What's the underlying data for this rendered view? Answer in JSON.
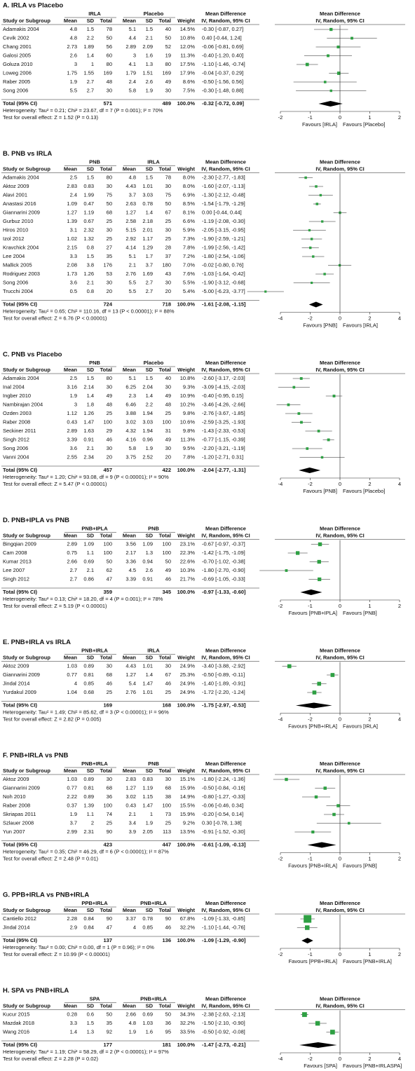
{
  "columns": {
    "study": "Study or Subgroup",
    "mean": "Mean",
    "sd": "SD",
    "total": "Total",
    "weight": "Weight",
    "md": "Mean Difference",
    "method": "IV, Random, 95% CI",
    "total_label": "Total (95% CI)"
  },
  "panels": [
    {
      "type": "forest",
      "title": "A. IRLA vs Placebo",
      "groups": [
        "IRLA",
        "Placebo"
      ],
      "xlim": [
        -2,
        2
      ],
      "xticks": [
        -2,
        -1,
        0,
        1,
        2
      ],
      "favours": [
        "Favours [IRLA]",
        "Favours [Placebo]"
      ],
      "rows": [
        [
          "Adamakis 2004",
          4.8,
          1.5,
          78,
          5.1,
          1.5,
          40,
          "14.5%",
          "-0.30 [-0.87, 0.27]",
          -0.3,
          -0.87,
          0.27
        ],
        [
          "Cevik 2002",
          4.8,
          2.2,
          50,
          4.4,
          2.1,
          50,
          "10.8%",
          "0.40 [-0.44, 1.24]",
          0.4,
          -0.44,
          1.24
        ],
        [
          "Chang 2001",
          2.73,
          1.89,
          56,
          2.89,
          2.09,
          52,
          "12.0%",
          "-0.06 [-0.81, 0.69]",
          -0.06,
          -0.81,
          0.69
        ],
        [
          "Galosi 2005",
          2.6,
          1.4,
          60,
          3,
          1.6,
          19,
          "11.3%",
          "-0.40 [-1.20, 0.40]",
          -0.4,
          -1.2,
          0.4
        ],
        [
          "Goluza 2010",
          3,
          1,
          80,
          4.1,
          1.3,
          80,
          "17.5%",
          "-1.10 [-1.46, -0.74]",
          -1.1,
          -1.46,
          -0.74
        ],
        [
          "Loweg 2006",
          1.75,
          1.55,
          169,
          1.79,
          1.51,
          169,
          "17.9%",
          "-0.04 [-0.37, 0.29]",
          -0.04,
          -0.37,
          0.29
        ],
        [
          "Raber 2005",
          1.9,
          2.7,
          48,
          2.4,
          2.6,
          49,
          "8.6%",
          "-0.50 [-1.56, 0.56]",
          -0.5,
          -1.56,
          0.56
        ],
        [
          "Song 2006",
          5.5,
          2.7,
          30,
          5.8,
          1.9,
          30,
          "7.5%",
          "-0.30 [-1.48, 0.88]",
          -0.3,
          -1.48,
          0.88
        ]
      ],
      "total": {
        "n1": 571,
        "n2": 489,
        "weight": "100.0%",
        "ci": "-0.32 [-0.72, 0.09]",
        "md": -0.32,
        "lo": -0.72,
        "hi": 0.09
      },
      "heterogeneity": "Heterogeneity: Tau² = 0.21; Chi² = 23.67, df = 7 (P = 0.001); I² = 70%",
      "overall": "Test for overall effect: Z = 1.52 (P = 0.13)"
    },
    {
      "type": "forest",
      "title": "B. PNB vs IRLA",
      "groups": [
        "PNB",
        "IRLA"
      ],
      "xlim": [
        -4,
        4
      ],
      "xticks": [
        -4,
        -2,
        0,
        2,
        4
      ],
      "favours": [
        "Favours [PNB]",
        "Favours [IRLA]"
      ],
      "rows": [
        [
          "Adamakis 2004",
          2.5,
          1.5,
          80,
          4.8,
          1.5,
          78,
          "8.0%",
          "-2.30 [-2.77, -1.83]",
          -2.3,
          -2.77,
          -1.83
        ],
        [
          "Aktoz 2009",
          2.83,
          0.83,
          30,
          4.43,
          1.01,
          30,
          "8.0%",
          "-1.60 [-2.07, -1.13]",
          -1.6,
          -2.07,
          -1.13
        ],
        [
          "Alavi 2001",
          2.4,
          1.99,
          75,
          3.7,
          3.03,
          75,
          "6.9%",
          "-1.30 [-2.12, -0.48]",
          -1.3,
          -2.12,
          -0.48
        ],
        [
          "Anastasi 2016",
          1.09,
          0.47,
          50,
          2.63,
          0.78,
          50,
          "8.5%",
          "-1.54 [-1.79, -1.29]",
          -1.54,
          -1.79,
          -1.29
        ],
        [
          "Giannarini 2009",
          1.27,
          1.19,
          68,
          1.27,
          1.4,
          67,
          "8.1%",
          "0.00 [-0.44, 0.44]",
          0,
          -0.44,
          0.44
        ],
        [
          "Gurbuz 2010",
          1.39,
          0.67,
          25,
          2.58,
          2.18,
          25,
          "6.6%",
          "-1.19 [-2.08, -0.30]",
          -1.19,
          -2.08,
          -0.3
        ],
        [
          "Hiros 2010",
          3.1,
          2.32,
          30,
          5.15,
          2.01,
          30,
          "5.9%",
          "-2.05 [-3.15, -0.95]",
          -2.05,
          -3.15,
          -0.95
        ],
        [
          "Izol 2012",
          1.02,
          1.32,
          25,
          2.92,
          1.17,
          25,
          "7.3%",
          "-1.90 [-2.59, -1.21]",
          -1.9,
          -2.59,
          -1.21
        ],
        [
          "Kravchick 2004",
          2.15,
          0.8,
          27,
          4.14,
          1.29,
          28,
          "7.8%",
          "-1.99 [-2.56, -1.42]",
          -1.99,
          -2.56,
          -1.42
        ],
        [
          "Lee 2004",
          3.3,
          1.5,
          35,
          5.1,
          1.7,
          37,
          "7.2%",
          "-1.80 [-2.54, -1.06]",
          -1.8,
          -2.54,
          -1.06
        ],
        [
          "Mallick 2005",
          2.08,
          3.8,
          176,
          2.1,
          3.7,
          180,
          "7.0%",
          "-0.02 [-0.80, 0.76]",
          -0.02,
          -0.8,
          0.76
        ],
        [
          "Rodriguez 2003",
          1.73,
          1.26,
          53,
          2.76,
          1.69,
          43,
          "7.6%",
          "-1.03 [-1.64, -0.42]",
          -1.03,
          -1.64,
          -0.42
        ],
        [
          "Song 2006",
          3.6,
          2.1,
          30,
          5.5,
          2.7,
          30,
          "5.5%",
          "-1.90 [-3.12, -0.68]",
          -1.9,
          -3.12,
          -0.68
        ],
        [
          "Trucchi 2004",
          0.5,
          0.8,
          20,
          5.5,
          2.7,
          20,
          "5.4%",
          "-5.00 [-6.23, -3.77]",
          -5,
          -6.23,
          -3.77
        ]
      ],
      "total": {
        "n1": 724,
        "n2": 718,
        "weight": "100.0%",
        "ci": "-1.61 [-2.08, -1.15]",
        "md": -1.61,
        "lo": -2.08,
        "hi": -1.15
      },
      "heterogeneity": "Heterogeneity: Tau² = 0.65; Chi² = 110.16, df = 13 (P < 0.00001); I² = 88%",
      "overall": "Test for overall effect: Z = 6.76 (P < 0.00001)"
    },
    {
      "type": "forest",
      "title": "C. PNB vs Placebo",
      "groups": [
        "PNB",
        "Placebo"
      ],
      "xlim": [
        -4,
        4
      ],
      "xticks": [
        -4,
        -2,
        0,
        2,
        4
      ],
      "favours": [
        "Favours [PNB]",
        "Favours [Placebo]"
      ],
      "rows": [
        [
          "Adamakis 2004",
          2.5,
          1.5,
          80,
          5.1,
          1.5,
          40,
          "10.8%",
          "-2.60 [-3.17, -2.03]",
          -2.6,
          -3.17,
          -2.03
        ],
        [
          "Inal 2004",
          3.16,
          2.14,
          30,
          6.25,
          2.04,
          30,
          "9.3%",
          "-3.09 [-4.15, -2.03]",
          -3.09,
          -4.15,
          -2.03
        ],
        [
          "Ingber 2010",
          1.9,
          1.4,
          49,
          2.3,
          1.4,
          49,
          "10.9%",
          "-0.40 [-0.95, 0.15]",
          -0.4,
          -0.95,
          0.15
        ],
        [
          "Nambirajan 2004",
          3,
          1.8,
          48,
          6.46,
          2.2,
          48,
          "10.2%",
          "-3.46 [-4.26, -2.66]",
          -3.46,
          -4.26,
          -2.66
        ],
        [
          "Ozden 2003",
          1.12,
          1.26,
          25,
          3.88,
          1.94,
          25,
          "9.8%",
          "-2.76 [-3.67, -1.85]",
          -2.76,
          -3.67,
          -1.85
        ],
        [
          "Raber 2008",
          0.43,
          1.47,
          100,
          3.02,
          3.03,
          100,
          "10.6%",
          "-2.59 [-3.25, -1.93]",
          -2.59,
          -3.25,
          -1.93
        ],
        [
          "Seckiner 2011",
          2.89,
          1.63,
          29,
          4.32,
          1.94,
          31,
          "9.8%",
          "-1.43 [-2.33, -0.53]",
          -1.43,
          -2.33,
          -0.53
        ],
        [
          "Singh 2012",
          3.39,
          0.91,
          46,
          4.16,
          0.96,
          49,
          "11.3%",
          "-0.77 [-1.15, -0.39]",
          -0.77,
          -1.15,
          -0.39
        ],
        [
          "Song 2006",
          3.6,
          2.1,
          30,
          5.8,
          1.9,
          30,
          "9.5%",
          "-2.20 [-3.21, -1.19]",
          -2.2,
          -3.21,
          -1.19
        ],
        [
          "Vanni 2004",
          2.55,
          2.34,
          20,
          3.75,
          2.52,
          20,
          "7.8%",
          "-1.20 [-2.71, 0.31]",
          -1.2,
          -2.71,
          0.31
        ]
      ],
      "total": {
        "n1": 457,
        "n2": 422,
        "weight": "100.0%",
        "ci": "-2.04 [-2.77, -1.31]",
        "md": -2.04,
        "lo": -2.77,
        "hi": -1.31
      },
      "heterogeneity": "Heterogeneity: Tau² = 1.20; Chi² = 93.08, df = 9 (P < 0.00001); I² = 90%",
      "overall": "Test for overall effect: Z = 5.47 (P < 0.00001)"
    },
    {
      "type": "forest",
      "title": "D. PNB+IPLA vs PNB",
      "groups": [
        "PNB+IPLA",
        "PNB"
      ],
      "xlim": [
        -2,
        2
      ],
      "xticks": [
        -2,
        -1,
        0,
        1,
        2
      ],
      "favours": [
        "Favours [PNB+IPLA]",
        "Favours [PNB]"
      ],
      "rows": [
        [
          "Bingqian 2009",
          2.89,
          1.09,
          100,
          3.56,
          1.09,
          100,
          "23.1%",
          "-0.67 [-0.97, -0.37]",
          -0.67,
          -0.97,
          -0.37
        ],
        [
          "Cam 2008",
          0.75,
          1.1,
          100,
          2.17,
          1.3,
          100,
          "22.3%",
          "-1.42 [-1.75, -1.09]",
          -1.42,
          -1.75,
          -1.09
        ],
        [
          "Kumar 2013",
          2.66,
          0.69,
          50,
          3.36,
          0.94,
          50,
          "22.6%",
          "-0.70 [-1.02, -0.38]",
          -0.7,
          -1.02,
          -0.38
        ],
        [
          "Lee 2007",
          2.7,
          2.1,
          62,
          4.5,
          2.6,
          49,
          "10.3%",
          "-1.80 [-2.70, -0.90]",
          -1.8,
          -2.7,
          -0.9
        ],
        [
          "Singh 2012",
          2.7,
          0.86,
          47,
          3.39,
          0.91,
          46,
          "21.7%",
          "-0.69 [-1.05, -0.33]",
          -0.69,
          -1.05,
          -0.33
        ]
      ],
      "total": {
        "n1": 359,
        "n2": 345,
        "weight": "100.0%",
        "ci": "-0.97 [-1.33, -0.60]",
        "md": -0.97,
        "lo": -1.33,
        "hi": -0.6
      },
      "heterogeneity": "Heterogeneity: Tau² = 0.13; Chi² = 18.20, df = 4 (P = 0.001); I² = 78%",
      "overall": "Test for overall effect: Z = 5.19 (P < 0.00001)"
    },
    {
      "type": "forest",
      "title": "E. PNB+IRLA vs IRLA",
      "groups": [
        "PNB+IRLA",
        "IRLA"
      ],
      "xlim": [
        -4,
        4
      ],
      "xticks": [
        -4,
        -2,
        0,
        2,
        4
      ],
      "favours": [
        "Favours [PNB+IRLA]",
        "Favours [IRLA]"
      ],
      "rows": [
        [
          "Aktoz 2009",
          1.03,
          0.89,
          30,
          4.43,
          1.01,
          30,
          "24.9%",
          "-3.40 [-3.88, -2.92]",
          -3.4,
          -3.88,
          -2.92
        ],
        [
          "Giannarini 2009",
          0.77,
          0.81,
          68,
          1.27,
          1.4,
          67,
          "25.3%",
          "-0.50 [-0.89, -0.11]",
          -0.5,
          -0.89,
          -0.11
        ],
        [
          "Jindal 2014",
          4,
          0.85,
          46,
          5.4,
          1.47,
          46,
          "24.9%",
          "-1.40 [-1.89, -0.91]",
          -1.4,
          -1.89,
          -0.91
        ],
        [
          "Yurdakul 2009",
          1.04,
          0.68,
          25,
          2.76,
          1.01,
          25,
          "24.9%",
          "-1.72 [-2.20, -1.24]",
          -1.72,
          -2.2,
          -1.24
        ]
      ],
      "total": {
        "n1": 169,
        "n2": 168,
        "weight": "100.0%",
        "ci": "-1.75 [-2.97, -0.53]",
        "md": -1.75,
        "lo": -2.97,
        "hi": -0.53
      },
      "heterogeneity": "Heterogeneity: Tau² = 1.49; Chi² = 85.62, df = 3 (P < 0.00001); I² = 96%",
      "overall": "Test for overall effect: Z = 2.82 (P = 0.005)"
    },
    {
      "type": "forest",
      "title": "F. PNB+IRLA vs PNB",
      "groups": [
        "PNB+IRLA",
        "PNB"
      ],
      "xlim": [
        -2,
        2
      ],
      "xticks": [
        -2,
        -1,
        0,
        1,
        2
      ],
      "favours": [
        "Favours [PNB+IRLA]",
        "Favours [PNB]"
      ],
      "rows": [
        [
          "Aktoz 2009",
          1.03,
          0.89,
          30,
          2.83,
          0.83,
          30,
          "15.1%",
          "-1.80 [-2.24, -1.36]",
          -1.8,
          -2.24,
          -1.36
        ],
        [
          "Giannarini 2009",
          0.77,
          0.81,
          68,
          1.27,
          1.19,
          68,
          "15.9%",
          "-0.50 [-0.84, -0.16]",
          -0.5,
          -0.84,
          -0.16
        ],
        [
          "Noh 2010",
          2.22,
          0.89,
          36,
          3.02,
          1.15,
          38,
          "14.9%",
          "-0.80 [-1.27, -0.33]",
          -0.8,
          -1.27,
          -0.33
        ],
        [
          "Raber 2008",
          0.37,
          1.39,
          100,
          0.43,
          1.47,
          100,
          "15.5%",
          "-0.06 [-0.46, 0.34]",
          -0.06,
          -0.46,
          0.34
        ],
        [
          "Skriapas 2011",
          1.9,
          1.1,
          74,
          2.1,
          1,
          73,
          "15.9%",
          "-0.20 [-0.54, 0.14]",
          -0.2,
          -0.54,
          0.14
        ],
        [
          "Szlauer 2008",
          3.7,
          2,
          25,
          3.4,
          1.9,
          25,
          "9.2%",
          "0.30 [-0.78, 1.38]",
          0.3,
          -0.78,
          1.38
        ],
        [
          "Yun 2007",
          2.99,
          2.31,
          90,
          3.9,
          2.05,
          113,
          "13.5%",
          "-0.91 [-1.52, -0.30]",
          -0.91,
          -1.52,
          -0.3
        ]
      ],
      "total": {
        "n1": 423,
        "n2": 447,
        "weight": "100.0%",
        "ci": "-0.61 [-1.09, -0.13]",
        "md": -0.61,
        "lo": -1.09,
        "hi": -0.13
      },
      "heterogeneity": "Heterogeneity: Tau² = 0.35; Chi² = 46.29, df = 6 (P < 0.00001); I² = 87%",
      "overall": "Test for overall effect: Z = 2.48 (P = 0.01)"
    },
    {
      "type": "forest",
      "title": "G. PPB+IRLA vs PNB+IRLA",
      "groups": [
        "PPB+IRLA",
        "PNB+IRLA"
      ],
      "xlim": [
        -2,
        2
      ],
      "xticks": [
        -2,
        -1,
        0,
        1,
        2
      ],
      "favours": [
        "Favours [PPB+IRLA]",
        "Favours [PNB+IRLA]"
      ],
      "rows": [
        [
          "Cantiello 2012",
          2.28,
          0.84,
          90,
          3.37,
          0.78,
          90,
          "67.8%",
          "-1.09 [-1.33, -0.85]",
          -1.09,
          -1.33,
          -0.85
        ],
        [
          "Jindal 2014",
          2.9,
          0.84,
          47,
          4,
          0.85,
          46,
          "32.2%",
          "-1.10 [-1.44, -0.76]",
          -1.1,
          -1.44,
          -0.76
        ]
      ],
      "total": {
        "n1": 137,
        "n2": 136,
        "weight": "100.0%",
        "ci": "-1.09 [-1.29, -0.90]",
        "md": -1.09,
        "lo": -1.29,
        "hi": -0.9
      },
      "heterogeneity": "Heterogeneity: Tau² = 0.00; Chi² = 0.00, df = 1 (P = 0.96); I² = 0%",
      "overall": "Test for overall effect: Z = 10.99 (P < 0.00001)"
    },
    {
      "type": "forest",
      "title": "H. SPA vs PNB+IRLA",
      "groups": [
        "SPA",
        "PNB+IRLA"
      ],
      "xlim": [
        -4,
        4
      ],
      "xticks": [
        -4,
        -2,
        0,
        2,
        4
      ],
      "favours": [
        "Favours [SPA]",
        "Favours [PNB+IRLASPA]"
      ],
      "rows": [
        [
          "Kucur 2015",
          0.28,
          0.6,
          50,
          2.66,
          0.69,
          50,
          "34.3%",
          "-2.38 [-2.63, -2.13]",
          -2.38,
          -2.63,
          -2.13
        ],
        [
          "Mazdak 2018",
          3.3,
          1.5,
          35,
          4.8,
          1.03,
          36,
          "32.2%",
          "-1.50 [-2.10, -0.90]",
          -1.5,
          -2.1,
          -0.9
        ],
        [
          "Wang 2016",
          1.4,
          1.3,
          92,
          1.9,
          1.6,
          95,
          "33.5%",
          "-0.50 [-0.92, -0.08]",
          -0.5,
          -0.92,
          -0.08
        ]
      ],
      "total": {
        "n1": 177,
        "n2": 181,
        "weight": "100.0%",
        "ci": "-1.47 [-2.73, -0.21]",
        "md": -1.47,
        "lo": -2.73,
        "hi": -0.21
      },
      "heterogeneity": "Heterogeneity: Tau² = 1.19; Chi² = 58.29, df = 2 (P < 0.00001); I² = 97%",
      "overall": "Test for overall effect: Z = 2.28 (P = 0.02)"
    }
  ]
}
